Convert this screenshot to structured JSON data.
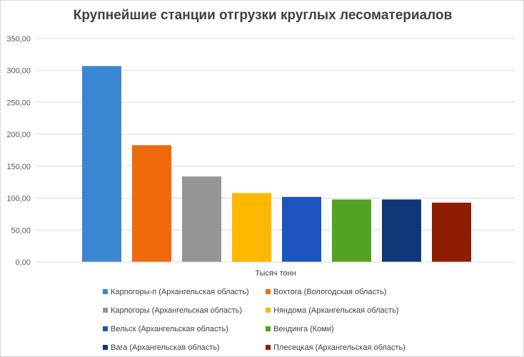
{
  "chart_data": {
    "type": "bar",
    "title": "Крупнейшие станции отгрузки круглых лесоматериалов",
    "xlabel": "Тысяч тонн",
    "ylabel": "",
    "ylim": [
      0,
      350
    ],
    "yticks": [
      "0,00",
      "50,00",
      "100,00",
      "150,00",
      "200,00",
      "250,00",
      "300,00",
      "350,00"
    ],
    "ytick_values": [
      0,
      50,
      100,
      150,
      200,
      250,
      300,
      350
    ],
    "grid": true,
    "legend_position": "bottom",
    "series": [
      {
        "name": "Карпогоры-п (Архангельская область)",
        "values": [
          307
        ],
        "color": "#3a87d1"
      },
      {
        "name": "Вохтога (Вологодская область)",
        "values": [
          183
        ],
        "color": "#ef6a0c"
      },
      {
        "name": "Карпогоры (Архангельская область)",
        "values": [
          134
        ],
        "color": "#959595"
      },
      {
        "name": "Няндома (Архангельская область)",
        "values": [
          108
        ],
        "color": "#ffb800"
      },
      {
        "name": "Вельск (Архангельская область)",
        "values": [
          102
        ],
        "color": "#1e54bf"
      },
      {
        "name": "Вендинга (Коми)",
        "values": [
          98
        ],
        "color": "#54a221"
      },
      {
        "name": "Вага (Архангельская область)",
        "values": [
          98
        ],
        "color": "#0f3778"
      },
      {
        "name": "Плесецкая (Архангельская область)",
        "values": [
          93
        ],
        "color": "#901c00"
      }
    ]
  }
}
